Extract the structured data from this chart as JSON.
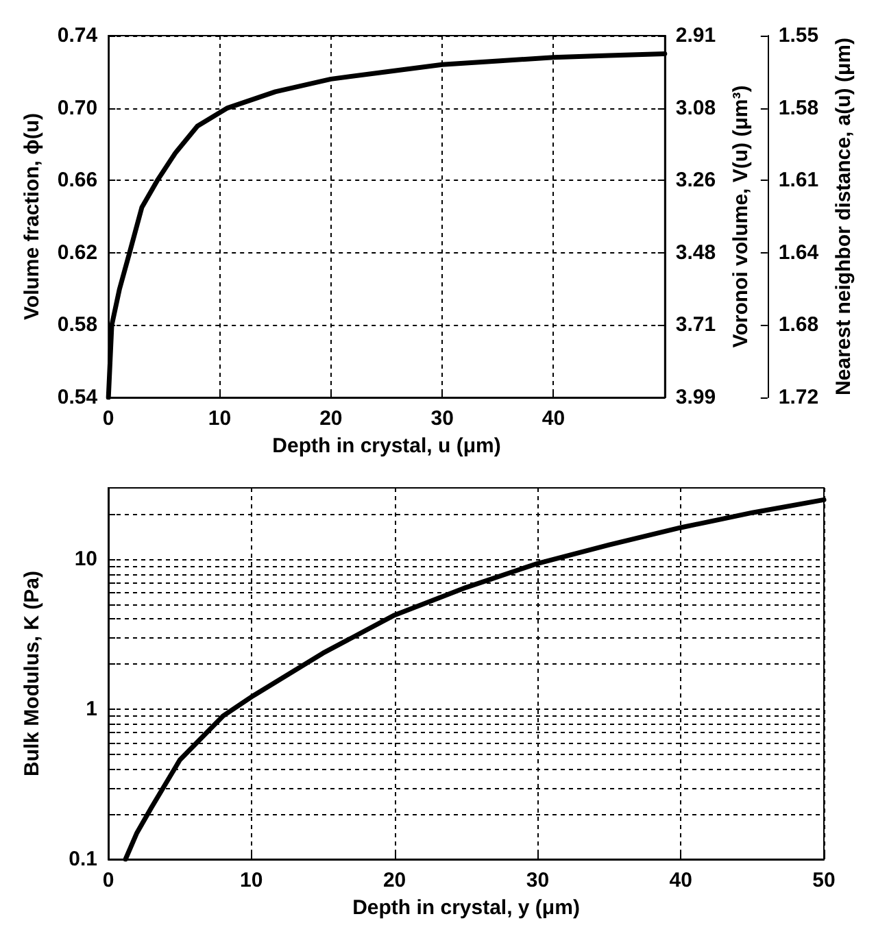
{
  "chart_data": [
    {
      "type": "line",
      "xlabel": "Depth in crystal, u (μm)",
      "ylabel": "Volume fraction, ϕ(u)",
      "y2label": "Voronoi volume, V(u) (μm³)",
      "y3label": "Nearest neighbor distance, a(u) (μm)",
      "xlim": [
        0,
        50
      ],
      "xticks": [
        0,
        10,
        20,
        30,
        40
      ],
      "ylim": [
        0.54,
        0.74
      ],
      "yticks": [
        0.54,
        0.58,
        0.62,
        0.66,
        {
          "value": 0.7,
          "label": "0.70"
        },
        0.74
      ],
      "y2_categories": [
        "2.91",
        "3.08",
        "3.26",
        "3.48",
        "3.71",
        "3.99"
      ],
      "annotations": [
        "1.55",
        "1.58",
        "1.61",
        "1.64",
        "1.68",
        "1.72"
      ],
      "grid": true,
      "marker": "none",
      "line_style": "solid",
      "series": [
        {
          "color": "#000000",
          "x": [
            0,
            0.3,
            1,
            1.9,
            3,
            4.4,
            6,
            8,
            10.7,
            15,
            20,
            25,
            30,
            35,
            40,
            45,
            50
          ],
          "values": [
            0.54,
            0.58,
            0.6,
            0.62,
            0.645,
            0.66,
            0.675,
            0.69,
            0.7,
            0.709,
            0.716,
            0.72,
            0.724,
            0.726,
            0.728,
            0.729,
            0.73
          ]
        }
      ]
    },
    {
      "type": "line",
      "xlabel": "Depth in crystal, y (μm)",
      "ylabel": "Bulk Modulus, K (Pa)",
      "xlim": [
        0,
        50
      ],
      "xticks": [
        0,
        10,
        20,
        30,
        40,
        50
      ],
      "ylim": [
        0.1,
        30
      ],
      "log": "y",
      "yticks": [
        0.1,
        {
          "value": 0.2,
          "label": null
        },
        {
          "value": 0.3,
          "label": null
        },
        {
          "value": 0.4,
          "label": null
        },
        {
          "value": 0.5,
          "label": null
        },
        {
          "value": 0.6,
          "label": null
        },
        {
          "value": 0.7,
          "label": null
        },
        {
          "value": 0.8,
          "label": null
        },
        {
          "value": 0.9,
          "label": null
        },
        1,
        {
          "value": 2,
          "label": null
        },
        {
          "value": 3,
          "label": null
        },
        {
          "value": 4,
          "label": null
        },
        {
          "value": 5,
          "label": null
        },
        {
          "value": 6,
          "label": null
        },
        {
          "value": 7,
          "label": null
        },
        {
          "value": 8,
          "label": null
        },
        {
          "value": 9,
          "label": null
        },
        10,
        {
          "value": 20,
          "label": null
        }
      ],
      "grid": true,
      "marker": "none",
      "line_style": "solid",
      "series": [
        {
          "color": "#000000",
          "x": [
            1.2,
            2,
            3,
            5,
            8,
            10,
            15,
            20,
            25,
            30,
            35,
            40,
            45,
            50
          ],
          "values": [
            0.1,
            0.15,
            0.22,
            0.46,
            0.9,
            1.21,
            2.37,
            4.25,
            6.5,
            9.4,
            12.5,
            16.3,
            20.5,
            25
          ]
        }
      ]
    }
  ]
}
